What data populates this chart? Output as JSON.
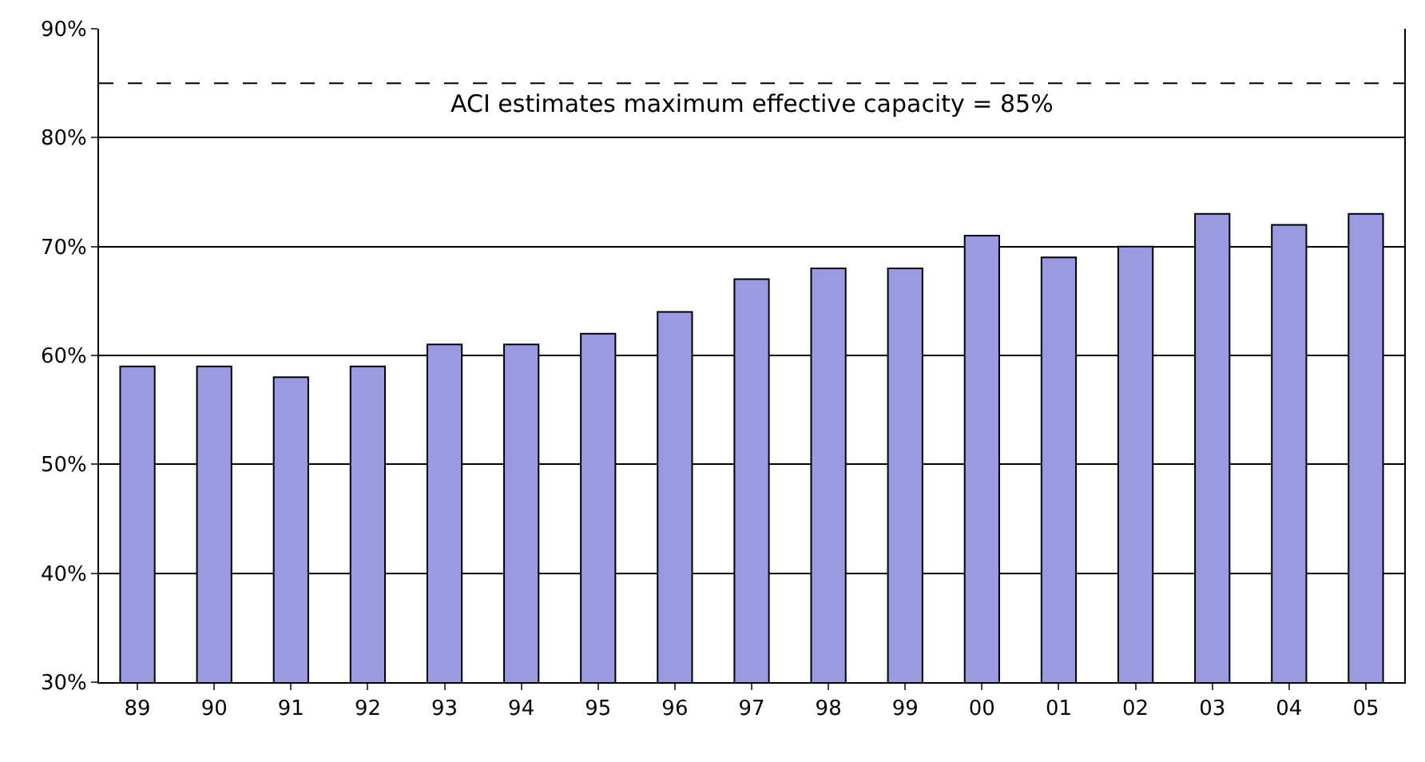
{
  "chart_data": {
    "type": "bar",
    "categories": [
      "89",
      "90",
      "91",
      "92",
      "93",
      "94",
      "95",
      "96",
      "97",
      "98",
      "99",
      "00",
      "01",
      "02",
      "03",
      "04",
      "05"
    ],
    "values": [
      59,
      59,
      58,
      59,
      61,
      61,
      62,
      64,
      67,
      68,
      68,
      71,
      69,
      70,
      73,
      72,
      73
    ],
    "color": "#9a9ae0",
    "ylim": [
      30,
      90
    ],
    "yticks": [
      {
        "value": 30,
        "label": "30%"
      },
      {
        "value": 40,
        "label": "40%"
      },
      {
        "value": 50,
        "label": "50%"
      },
      {
        "value": 60,
        "label": "60%"
      },
      {
        "value": 70,
        "label": "70%"
      },
      {
        "value": 80,
        "label": "80%"
      },
      {
        "value": 90,
        "label": "90%"
      }
    ],
    "grid": "y",
    "ref_lines": [
      {
        "axis": "y",
        "value": 85,
        "label": "ACI estimates maximum effective capacity = 85%",
        "line_style": "dashed",
        "color": "#000000"
      }
    ]
  }
}
